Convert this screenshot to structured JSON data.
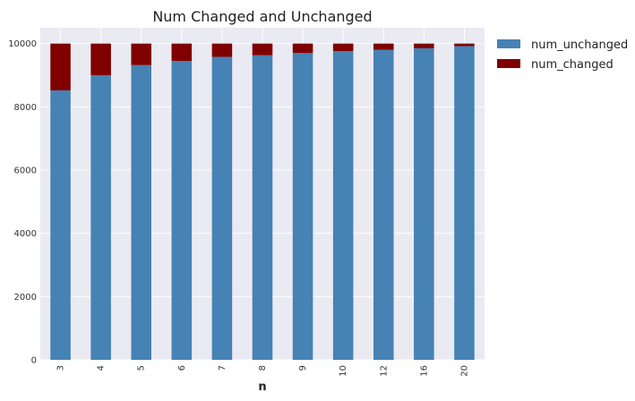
{
  "chart_data": {
    "type": "bar",
    "stacked": true,
    "title": "Num Changed and Unchanged",
    "xlabel": "n",
    "ylabel": "",
    "ylim": [
      0,
      10500
    ],
    "yticks": [
      0,
      2000,
      4000,
      6000,
      8000,
      10000
    ],
    "categories": [
      "3",
      "4",
      "5",
      "6",
      "7",
      "8",
      "9",
      "10",
      "12",
      "16",
      "20"
    ],
    "series": [
      {
        "name": "num_unchanged",
        "color": "#4682b4",
        "values": [
          8520,
          9000,
          9320,
          9450,
          9580,
          9630,
          9700,
          9760,
          9800,
          9850,
          9920
        ]
      },
      {
        "name": "num_changed",
        "color": "#800000",
        "values": [
          1480,
          1000,
          680,
          550,
          420,
          370,
          300,
          240,
          200,
          150,
          80
        ]
      }
    ],
    "grid": true,
    "legend_position": "outside-top-right",
    "background": "#eaeaf2"
  }
}
